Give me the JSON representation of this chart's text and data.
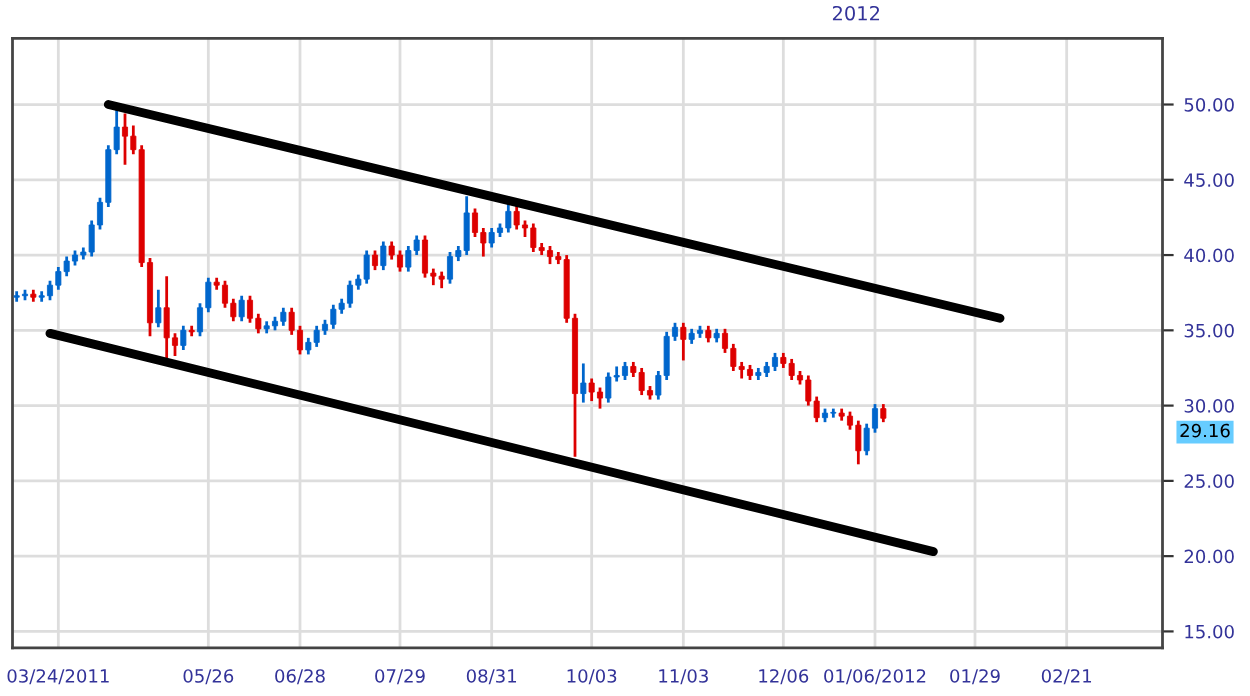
{
  "chart_data": {
    "type": "candlestick",
    "categories": [
      null,
      null,
      null,
      null,
      null,
      "03/24/2011",
      null,
      null,
      null,
      null,
      null,
      null,
      null,
      null,
      null,
      null,
      null,
      null,
      null,
      null,
      null,
      null,
      null,
      "05/26",
      null,
      null,
      null,
      null,
      null,
      null,
      null,
      null,
      null,
      null,
      "06/28",
      null,
      null,
      null,
      null,
      null,
      null,
      null,
      null,
      null,
      null,
      null,
      "07/29",
      null,
      null,
      null,
      null,
      null,
      null,
      null,
      null,
      null,
      null,
      "08/31",
      null,
      null,
      null,
      null,
      null,
      null,
      null,
      null,
      null,
      null,
      null,
      "10/03",
      null,
      null,
      null,
      null,
      null,
      null,
      null,
      null,
      null,
      null,
      "11/03",
      null,
      null,
      null,
      null,
      null,
      null,
      null,
      null,
      null,
      null,
      null,
      "12/06",
      null,
      null,
      null,
      null,
      null,
      null,
      null,
      null,
      null,
      null,
      "01/06/2012",
      null,
      null,
      null,
      null,
      null,
      null,
      null,
      null,
      null,
      null,
      null,
      "01/29",
      null,
      null,
      null,
      null,
      null,
      null,
      null,
      null,
      null,
      null,
      "02/21",
      null,
      null,
      null,
      null,
      null,
      null,
      null,
      null,
      null,
      null,
      null
    ],
    "ohlc": [
      [
        37.2,
        37.6,
        36.9,
        37.3
      ],
      [
        37.3,
        37.7,
        37.0,
        37.4
      ],
      [
        37.4,
        37.7,
        36.9,
        37.2
      ],
      [
        37.2,
        37.6,
        36.9,
        37.3
      ],
      [
        37.3,
        38.3,
        37.0,
        38.0
      ],
      [
        38.0,
        39.2,
        37.7,
        38.9
      ],
      [
        38.9,
        39.9,
        38.6,
        39.6
      ],
      [
        39.6,
        40.3,
        39.3,
        40.0
      ],
      [
        40.0,
        40.5,
        39.7,
        40.2
      ],
      [
        40.2,
        42.3,
        39.9,
        42.0
      ],
      [
        42.0,
        43.8,
        41.7,
        43.5
      ],
      [
        43.5,
        47.3,
        43.2,
        47.0
      ],
      [
        47.0,
        50.0,
        46.7,
        48.5
      ],
      [
        48.5,
        49.4,
        46.0,
        47.9
      ],
      [
        47.9,
        48.6,
        46.7,
        47.0
      ],
      [
        47.0,
        47.3,
        39.2,
        39.5
      ],
      [
        39.5,
        39.8,
        34.6,
        35.5
      ],
      [
        35.5,
        37.7,
        35.2,
        36.5
      ],
      [
        36.5,
        38.6,
        33.1,
        34.5
      ],
      [
        34.5,
        34.8,
        33.3,
        34.0
      ],
      [
        34.0,
        35.3,
        33.7,
        35.0
      ],
      [
        35.0,
        35.3,
        34.6,
        34.9
      ],
      [
        34.9,
        36.8,
        34.6,
        36.5
      ],
      [
        36.5,
        38.5,
        36.2,
        38.2
      ],
      [
        38.2,
        38.5,
        37.7,
        38.0
      ],
      [
        38.0,
        38.3,
        36.5,
        36.8
      ],
      [
        36.8,
        37.1,
        35.6,
        35.9
      ],
      [
        35.9,
        37.3,
        35.6,
        37.0
      ],
      [
        37.0,
        37.3,
        35.5,
        35.8
      ],
      [
        35.8,
        36.1,
        34.8,
        35.1
      ],
      [
        35.1,
        35.6,
        34.8,
        35.3
      ],
      [
        35.3,
        35.9,
        35.0,
        35.6
      ],
      [
        35.6,
        36.5,
        35.3,
        36.2
      ],
      [
        36.2,
        36.5,
        34.7,
        35.0
      ],
      [
        35.0,
        35.3,
        33.4,
        33.7
      ],
      [
        33.7,
        34.5,
        33.4,
        34.2
      ],
      [
        34.2,
        35.3,
        33.9,
        35.0
      ],
      [
        35.0,
        35.7,
        34.7,
        35.4
      ],
      [
        35.4,
        36.7,
        35.1,
        36.4
      ],
      [
        36.4,
        37.1,
        36.1,
        36.8
      ],
      [
        36.8,
        38.3,
        36.5,
        38.0
      ],
      [
        38.0,
        38.7,
        37.7,
        38.4
      ],
      [
        38.4,
        40.3,
        38.1,
        40.0
      ],
      [
        40.0,
        40.3,
        39.0,
        39.3
      ],
      [
        39.3,
        40.9,
        39.0,
        40.6
      ],
      [
        40.6,
        40.9,
        39.7,
        40.0
      ],
      [
        40.0,
        40.3,
        38.9,
        39.2
      ],
      [
        39.2,
        40.6,
        38.9,
        40.3
      ],
      [
        40.3,
        41.3,
        40.0,
        41.0
      ],
      [
        41.0,
        41.3,
        38.5,
        38.8
      ],
      [
        38.8,
        39.1,
        38.0,
        38.6
      ],
      [
        38.6,
        38.9,
        37.8,
        38.4
      ],
      [
        38.4,
        40.2,
        38.1,
        39.9
      ],
      [
        39.9,
        40.6,
        39.6,
        40.3
      ],
      [
        40.3,
        43.9,
        40.0,
        42.8
      ],
      [
        42.8,
        43.1,
        41.2,
        41.5
      ],
      [
        41.5,
        41.8,
        39.9,
        40.8
      ],
      [
        40.8,
        41.8,
        40.5,
        41.5
      ],
      [
        41.5,
        42.1,
        41.2,
        41.8
      ],
      [
        41.8,
        43.6,
        41.5,
        42.9
      ],
      [
        42.9,
        43.5,
        41.7,
        42.0
      ],
      [
        42.0,
        42.3,
        41.2,
        41.8
      ],
      [
        41.8,
        42.1,
        40.2,
        40.5
      ],
      [
        40.5,
        40.8,
        40.0,
        40.3
      ],
      [
        40.3,
        40.6,
        39.4,
        39.9
      ],
      [
        39.9,
        40.2,
        39.4,
        39.7
      ],
      [
        39.7,
        40.0,
        35.5,
        35.8
      ],
      [
        35.8,
        36.1,
        26.6,
        30.8
      ],
      [
        30.8,
        32.8,
        30.2,
        31.5
      ],
      [
        31.5,
        31.8,
        30.3,
        30.9
      ],
      [
        30.9,
        31.2,
        29.8,
        30.5
      ],
      [
        30.5,
        32.2,
        30.2,
        31.9
      ],
      [
        31.9,
        32.6,
        31.6,
        32.0
      ],
      [
        32.0,
        32.9,
        31.7,
        32.6
      ],
      [
        32.6,
        32.9,
        31.9,
        32.2
      ],
      [
        32.2,
        32.5,
        30.7,
        31.0
      ],
      [
        31.0,
        31.3,
        30.4,
        30.7
      ],
      [
        30.7,
        32.3,
        30.4,
        32.0
      ],
      [
        32.0,
        34.9,
        31.7,
        34.6
      ],
      [
        34.6,
        35.5,
        34.3,
        35.2
      ],
      [
        35.2,
        35.5,
        33.0,
        34.4
      ],
      [
        34.4,
        35.1,
        34.1,
        34.8
      ],
      [
        34.8,
        35.3,
        34.5,
        35.0
      ],
      [
        35.0,
        35.3,
        34.2,
        34.5
      ],
      [
        34.5,
        35.1,
        34.2,
        34.8
      ],
      [
        34.8,
        35.1,
        33.5,
        33.8
      ],
      [
        33.8,
        34.1,
        32.3,
        32.6
      ],
      [
        32.6,
        32.9,
        31.8,
        32.4
      ],
      [
        32.4,
        32.7,
        31.7,
        32.0
      ],
      [
        32.0,
        32.5,
        31.7,
        32.2
      ],
      [
        32.2,
        32.9,
        31.9,
        32.6
      ],
      [
        32.6,
        33.5,
        32.3,
        33.2
      ],
      [
        33.2,
        33.5,
        32.5,
        32.8
      ],
      [
        32.8,
        33.1,
        31.7,
        32.0
      ],
      [
        32.0,
        32.3,
        31.4,
        31.7
      ],
      [
        31.7,
        32.0,
        30.0,
        30.3
      ],
      [
        30.3,
        30.6,
        28.9,
        29.2
      ],
      [
        29.2,
        29.8,
        28.9,
        29.5
      ],
      [
        29.5,
        29.8,
        29.2,
        29.5
      ],
      [
        29.5,
        29.8,
        29.0,
        29.3
      ],
      [
        29.3,
        29.6,
        28.4,
        28.7
      ],
      [
        28.7,
        29.0,
        26.1,
        27.0
      ],
      [
        27.0,
        28.8,
        26.7,
        28.5
      ],
      [
        28.5,
        30.1,
        28.2,
        29.8
      ],
      [
        29.8,
        30.1,
        28.9,
        29.16
      ],
      null,
      null,
      null,
      null,
      null,
      null,
      null,
      null,
      null,
      null,
      null,
      null,
      null,
      null,
      null,
      null,
      null,
      null,
      null,
      null,
      null,
      null,
      null,
      null,
      null,
      null,
      null,
      null,
      null,
      null,
      null,
      null,
      null
    ],
    "colors": [
      "#0066cc",
      "#0066cc",
      "#dd0000",
      "#0066cc",
      "#0066cc",
      "#0066cc",
      "#0066cc",
      "#0066cc",
      "#0066cc",
      "#0066cc",
      "#0066cc",
      "#0066cc",
      "#0066cc",
      "#dd0000",
      "#dd0000",
      "#dd0000",
      "#dd0000",
      "#0066cc",
      "#dd0000",
      "#dd0000",
      "#0066cc",
      "#dd0000",
      "#0066cc",
      "#0066cc",
      "#dd0000",
      "#dd0000",
      "#dd0000",
      "#0066cc",
      "#dd0000",
      "#dd0000",
      "#0066cc",
      "#0066cc",
      "#0066cc",
      "#dd0000",
      "#dd0000",
      "#0066cc",
      "#0066cc",
      "#0066cc",
      "#0066cc",
      "#0066cc",
      "#0066cc",
      "#0066cc",
      "#0066cc",
      "#dd0000",
      "#0066cc",
      "#dd0000",
      "#dd0000",
      "#0066cc",
      "#0066cc",
      "#dd0000",
      "#dd0000",
      "#dd0000",
      "#0066cc",
      "#0066cc",
      "#0066cc",
      "#dd0000",
      "#dd0000",
      "#0066cc",
      "#0066cc",
      "#0066cc",
      "#dd0000",
      "#dd0000",
      "#dd0000",
      "#dd0000",
      "#dd0000",
      "#dd0000",
      "#dd0000",
      "#dd0000",
      "#0066cc",
      "#dd0000",
      "#dd0000",
      "#0066cc",
      "#0066cc",
      "#0066cc",
      "#dd0000",
      "#dd0000",
      "#dd0000",
      "#0066cc",
      "#0066cc",
      "#0066cc",
      "#dd0000",
      "#0066cc",
      "#0066cc",
      "#dd0000",
      "#0066cc",
      "#dd0000",
      "#dd0000",
      "#dd0000",
      "#dd0000",
      "#0066cc",
      "#0066cc",
      "#0066cc",
      "#dd0000",
      "#dd0000",
      "#dd0000",
      "#dd0000",
      "#dd0000",
      "#0066cc",
      "#0066cc",
      "#dd0000",
      "#dd0000",
      "#dd0000",
      "#0066cc",
      "#0066cc",
      "#dd0000",
      null,
      null,
      null,
      null,
      null,
      null,
      null,
      null,
      null,
      null,
      null,
      null,
      null,
      null,
      null,
      null,
      null,
      null,
      null,
      null,
      null,
      null,
      null,
      null,
      null,
      null,
      null,
      null,
      null,
      null,
      null,
      null,
      null
    ],
    "series": [
      {
        "type": "line",
        "color": "#000000",
        "values": [
          null,
          null,
          null,
          null,
          null,
          null,
          null,
          null,
          null,
          null,
          null,
          50.0,
          null,
          null,
          null,
          null,
          null,
          null,
          null,
          null,
          null,
          null,
          null,
          null,
          null,
          null,
          null,
          null,
          null,
          null,
          null,
          null,
          null,
          null,
          null,
          null,
          null,
          null,
          null,
          null,
          null,
          null,
          null,
          null,
          null,
          null,
          null,
          null,
          null,
          null,
          null,
          null,
          null,
          null,
          null,
          null,
          null,
          null,
          null,
          null,
          null,
          null,
          null,
          null,
          null,
          null,
          null,
          null,
          null,
          null,
          null,
          null,
          null,
          null,
          null,
          null,
          null,
          null,
          null,
          null,
          null,
          null,
          null,
          null,
          null,
          null,
          null,
          null,
          null,
          null,
          null,
          null,
          null,
          null,
          null,
          null,
          null,
          null,
          null,
          null,
          null,
          null,
          null,
          null,
          null,
          null,
          null,
          null,
          null,
          null,
          null,
          null,
          null,
          null,
          null,
          null,
          null,
          null,
          35.8,
          null,
          null,
          null,
          null,
          null,
          null,
          null,
          null,
          null,
          null,
          null,
          null,
          null,
          null,
          null,
          null,
          null,
          null,
          null
        ]
      },
      {
        "type": "line",
        "color": "#000000",
        "values": [
          null,
          null,
          null,
          null,
          34.8,
          null,
          null,
          null,
          null,
          null,
          null,
          null,
          null,
          null,
          null,
          null,
          null,
          null,
          null,
          null,
          null,
          null,
          null,
          null,
          null,
          null,
          null,
          null,
          null,
          null,
          null,
          null,
          null,
          null,
          null,
          null,
          null,
          null,
          null,
          null,
          null,
          null,
          null,
          null,
          null,
          null,
          null,
          null,
          null,
          null,
          null,
          null,
          null,
          null,
          null,
          null,
          null,
          null,
          null,
          null,
          null,
          null,
          null,
          null,
          null,
          null,
          null,
          null,
          null,
          null,
          null,
          null,
          null,
          null,
          null,
          null,
          null,
          null,
          null,
          null,
          null,
          null,
          null,
          null,
          null,
          null,
          null,
          null,
          null,
          null,
          null,
          null,
          null,
          null,
          null,
          null,
          null,
          null,
          null,
          null,
          null,
          null,
          null,
          null,
          null,
          null,
          null,
          null,
          null,
          null,
          20.3,
          null,
          null,
          null,
          null,
          null,
          null,
          null,
          null,
          null,
          null,
          null,
          null,
          null,
          null,
          null,
          null,
          null,
          null,
          null,
          null,
          null,
          null,
          null,
          null,
          null,
          null,
          null
        ]
      }
    ],
    "ylim": [
      13.9,
      54.4
    ],
    "yticks": [
      {
        "value": 15,
        "label": "15.00"
      },
      {
        "value": 20,
        "label": "20.00"
      },
      {
        "value": 25,
        "label": "25.00"
      },
      {
        "value": 30,
        "label": "30.00"
      },
      {
        "value": 35,
        "label": "35.00"
      },
      {
        "value": 40,
        "label": "40.00"
      },
      {
        "value": 45,
        "label": "45.00"
      },
      {
        "value": 50,
        "label": "50.00"
      }
    ],
    "grid": true,
    "annotations": [
      "2012",
      "29.16"
    ]
  }
}
